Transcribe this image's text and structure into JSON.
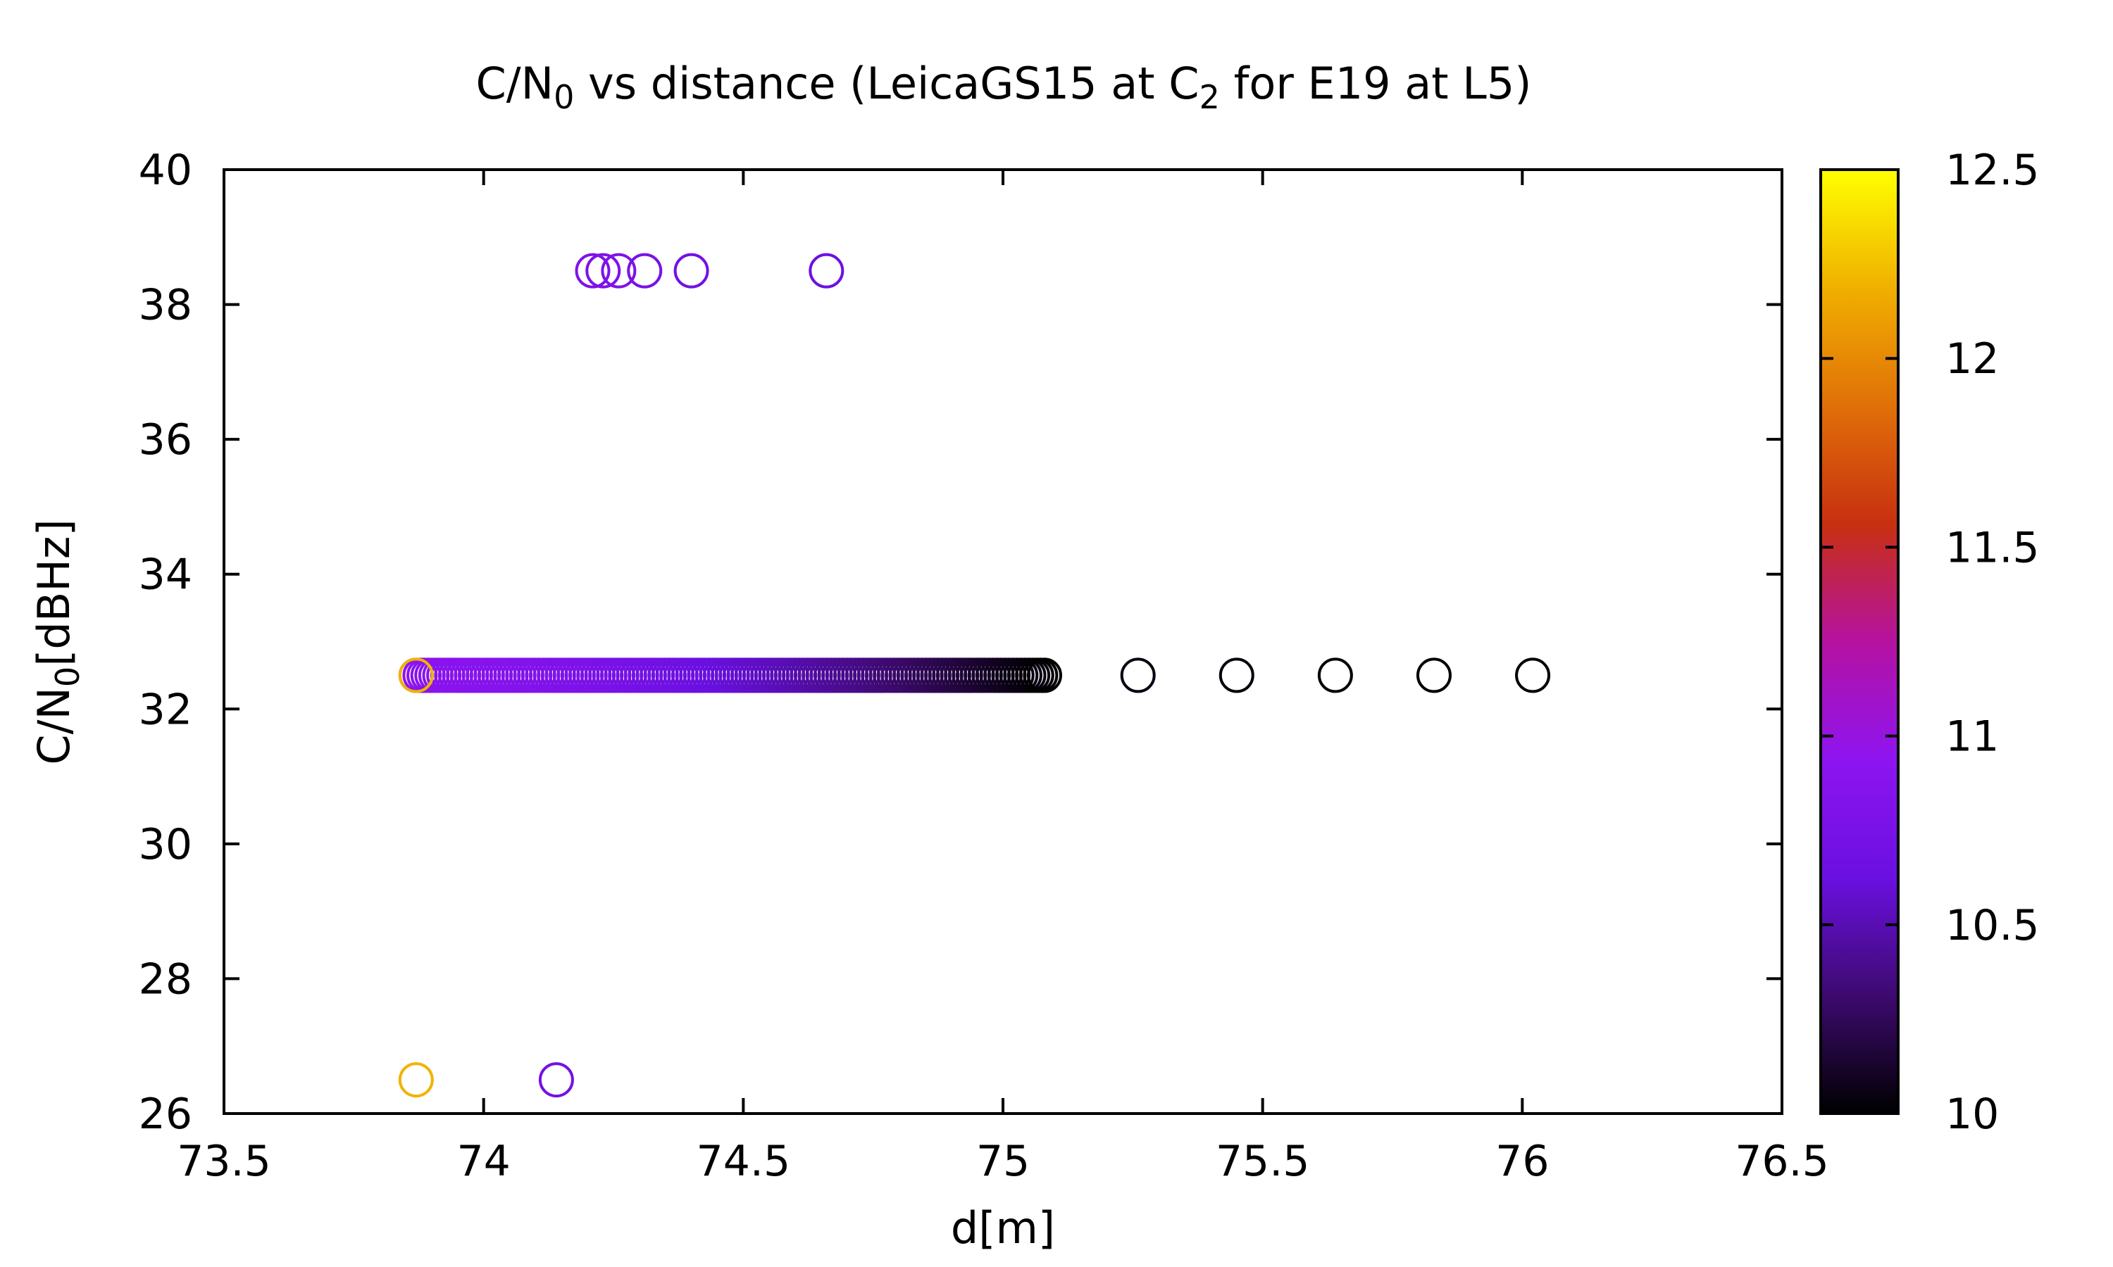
{
  "chart_data": {
    "type": "scatter",
    "title": "C/N0 vs distance (LeicaGS15 at C2 for E19 at L5)",
    "title_parts": {
      "pre": "C/N",
      "sub1": "0",
      "mid": " vs distance (LeicaGS15 at C",
      "sub2": "2",
      "post": " for E19 at L5)"
    },
    "xlabel": "d[m]",
    "ylabel_parts": {
      "pre": "C/N",
      "sub": "0",
      "post": "[dBHz]"
    },
    "xlim": [
      73.5,
      76.5
    ],
    "ylim": [
      26,
      40
    ],
    "x_ticks": [
      "73.5",
      "74",
      "74.5",
      "75",
      "75.5",
      "76",
      "76.5"
    ],
    "y_ticks": [
      "26",
      "28",
      "30",
      "32",
      "34",
      "36",
      "38",
      "40"
    ],
    "colorbar": {
      "range": [
        10,
        12.5
      ],
      "ticks": [
        "10",
        "10.5",
        "11",
        "11.5",
        "12",
        "12.5"
      ],
      "palette": [
        "#000000",
        "#3d0a6f",
        "#6a10e0",
        "#8e14f0",
        "#b512a0",
        "#c83010",
        "#e07008",
        "#f0b000",
        "#ffff00"
      ]
    },
    "marker": "open-circle",
    "points": [
      {
        "x": 74.21,
        "y": 38.5,
        "c": 10.8
      },
      {
        "x": 74.23,
        "y": 38.5,
        "c": 10.8
      },
      {
        "x": 74.26,
        "y": 38.5,
        "c": 10.8
      },
      {
        "x": 74.31,
        "y": 38.5,
        "c": 10.75
      },
      {
        "x": 74.4,
        "y": 38.5,
        "c": 10.7
      },
      {
        "x": 74.66,
        "y": 38.5,
        "c": 10.65
      },
      {
        "x": 75.26,
        "y": 32.5,
        "c": 10.05
      },
      {
        "x": 75.45,
        "y": 32.5,
        "c": 10.03
      },
      {
        "x": 75.64,
        "y": 32.5,
        "c": 10.02
      },
      {
        "x": 75.83,
        "y": 32.5,
        "c": 10.01
      },
      {
        "x": 76.02,
        "y": 32.5,
        "c": 10.0
      },
      {
        "x": 73.87,
        "y": 26.5,
        "c": 12.2
      },
      {
        "x": 74.14,
        "y": 26.5,
        "c": 10.7
      }
    ],
    "dense_band": {
      "y": 32.5,
      "x_start": 73.87,
      "x_end": 75.08,
      "count": 160,
      "c_start": 10.9,
      "c_end": 10.0,
      "first_point_c": 12.2
    }
  }
}
